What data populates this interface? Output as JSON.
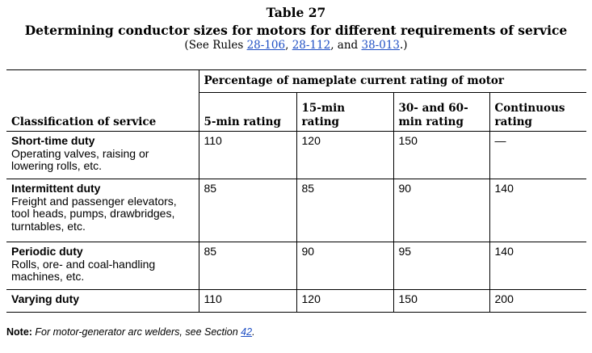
{
  "table_number": "Table 27",
  "table_title": "Determining conductor sizes for motors for different requirements of service",
  "subtitle": {
    "prefix": "(See Rules ",
    "rule1": "28-106",
    "sep1": ", ",
    "rule2": "28-112",
    "sep2": ", and ",
    "rule3": "38-013",
    "suffix": ".)"
  },
  "header": {
    "group_label": "Percentage of nameplate current rating of motor",
    "classification_label": "Classification of service",
    "columns": [
      "5-min rating",
      "15-min rating",
      "30- and 60-min rating",
      "Continuous rating"
    ]
  },
  "rows": [
    {
      "name": "Short-time duty",
      "description": "Operating valves, raising or lowering rolls, etc.",
      "values": [
        "110",
        "120",
        "150",
        "—"
      ]
    },
    {
      "name": "Intermittent duty",
      "description": "Freight and passenger elevators, tool heads, pumps, drawbridges, turntables, etc.",
      "values": [
        "85",
        "85",
        "90",
        "140"
      ]
    },
    {
      "name": "Periodic duty",
      "description": "Rolls, ore- and coal-handling machines, etc.",
      "values": [
        "85",
        "90",
        "95",
        "140"
      ]
    },
    {
      "name": "Varying duty",
      "description": "",
      "values": [
        "110",
        "120",
        "150",
        "200"
      ]
    }
  ],
  "note": {
    "label": "Note:",
    "text": " For motor-generator arc welders, see Section ",
    "link": "42",
    "end": "."
  }
}
